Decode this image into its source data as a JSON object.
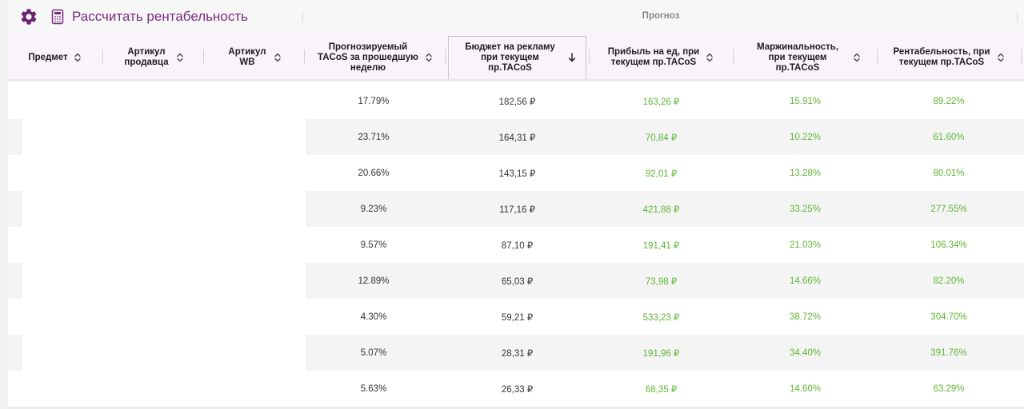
{
  "toolbar": {
    "gear_icon": "gear-icon",
    "calc_icon": "calculator-icon",
    "calc_label": "Рассчитать рентабельность",
    "group_label": "Прогноз",
    "accent_color": "#7a2c7e"
  },
  "columns": [
    {
      "label": "Предмет",
      "sorted": null
    },
    {
      "label": "Артикул продавца",
      "sorted": null
    },
    {
      "label": "Артикул WB",
      "sorted": null
    },
    {
      "label": "Прогнозируемый TACoS за прошедшую неделю",
      "sorted": null
    },
    {
      "label": "Бюджет на рекламу при текущем пр.TACoS",
      "sorted": "desc"
    },
    {
      "label": "Прибыль на ед, при текущем пр.TACoS",
      "sorted": null
    },
    {
      "label": "Маржинальность, при текущем пр.TACoS",
      "sorted": null
    },
    {
      "label": "Рентабельность, при текущем пр.TACoS",
      "sorted": null
    }
  ],
  "rows": [
    {
      "tacos": "17.79%",
      "budget": "182,56 ₽",
      "profit": "163,26 ₽",
      "margin": "15.91%",
      "rent": "89.22%"
    },
    {
      "tacos": "23.71%",
      "budget": "164,31 ₽",
      "profit": "70,84 ₽",
      "margin": "10.22%",
      "rent": "61.60%"
    },
    {
      "tacos": "20.66%",
      "budget": "143,15 ₽",
      "profit": "92,01 ₽",
      "margin": "13.28%",
      "rent": "80.01%"
    },
    {
      "tacos": "9.23%",
      "budget": "117,16 ₽",
      "profit": "421,88 ₽",
      "margin": "33.25%",
      "rent": "277.55%"
    },
    {
      "tacos": "9.57%",
      "budget": "87,10 ₽",
      "profit": "191,41 ₽",
      "margin": "21.03%",
      "rent": "106.34%"
    },
    {
      "tacos": "12.89%",
      "budget": "65,03 ₽",
      "profit": "73,98 ₽",
      "margin": "14.66%",
      "rent": "82.20%"
    },
    {
      "tacos": "4.30%",
      "budget": "59,21 ₽",
      "profit": "533,23 ₽",
      "margin": "38.72%",
      "rent": "304.70%"
    },
    {
      "tacos": "5.07%",
      "budget": "28,31 ₽",
      "profit": "191,96 ₽",
      "margin": "34.40%",
      "rent": "391.76%"
    },
    {
      "tacos": "5.63%",
      "budget": "26,33 ₽",
      "profit": "68,35 ₽",
      "margin": "14.60%",
      "rent": "63.29%"
    }
  ]
}
